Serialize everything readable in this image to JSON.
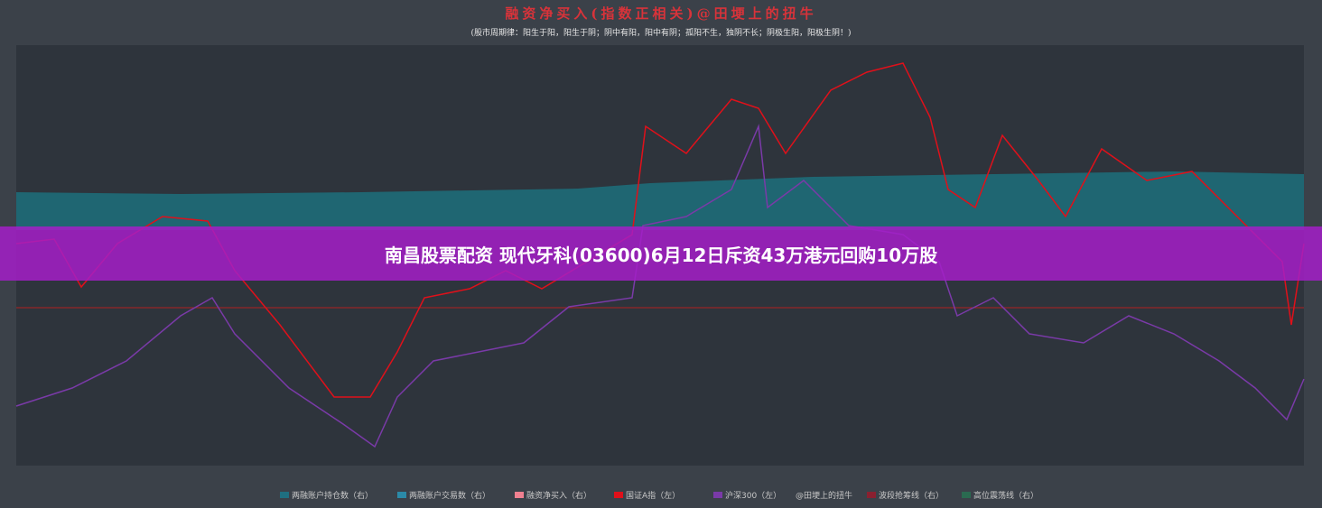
{
  "title": "融资净买入(指数正相关)@田埂上的扭牛",
  "subtitle": "(股市周期律：阳生于阳，阳生于阴；阴中有阳，阳中有阴；孤阳不生，独阴不长；阴极生阳，阳极生阴！)",
  "legend": [
    {
      "name": "两融账户持仓数（右）",
      "color": "#1f6f80"
    },
    {
      "name": "两融账户交易数（右）",
      "color": "#2b8aa8"
    },
    {
      "name": "融资净买入（右）",
      "color": "#f08090"
    },
    {
      "name": "国证A指（左）",
      "color": "#e0101a"
    },
    {
      "name": "沪深300（左）",
      "color": "#7a3aa8"
    },
    {
      "name": "@田埂上的扭牛",
      "color": "#3b4149"
    },
    {
      "name": "波段抢筹线（右）",
      "color": "#8a2030"
    },
    {
      "name": "高位震荡线（右）",
      "color": "#2a6a50"
    }
  ],
  "banner": "南昌股票配资 现代牙科(03600)6月12日斥资43万港元回购10万股"
}
